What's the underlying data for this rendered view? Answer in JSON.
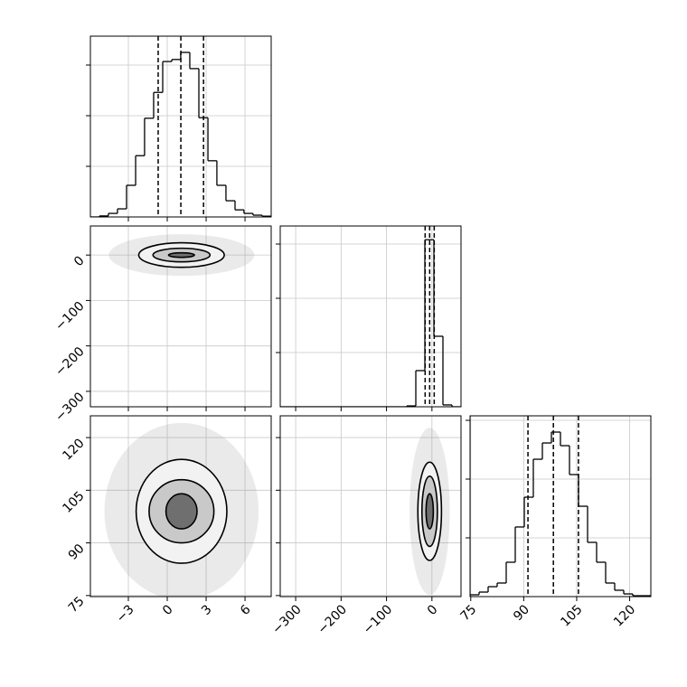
{
  "chart_data": [
    {
      "type": "histogram",
      "bins": [
        -5.93,
        -5.23,
        -4.54,
        -3.84,
        -3.14,
        -2.44,
        -1.75,
        -1.05,
        -0.35,
        0.35,
        1.04,
        1.74,
        2.44,
        3.14,
        3.83,
        4.53,
        5.23,
        5.92,
        6.62,
        7.32,
        8.02
      ],
      "counts": [
        0,
        20,
        70,
        160,
        625,
        1210,
        1950,
        2460,
        3070,
        3110,
        3250,
        2930,
        1960,
        1110,
        625,
        320,
        140,
        70,
        35,
        15
      ],
      "quantiles": [
        -0.7,
        1.05,
        2.8
      ],
      "xlim": [
        -5.93,
        8.02
      ],
      "ylim": [
        0,
        3571
      ],
      "xticks": [
        -3,
        0,
        3,
        6
      ],
      "yticks": [
        1000,
        2000,
        3000
      ],
      "show_xlabels": false,
      "show_ylabels": false,
      "grid": true,
      "color": "#000000"
    },
    {
      "type": "contour",
      "center": [
        1.1,
        0
      ],
      "levels": [
        {
          "rx": 3.3,
          "ry": 27
        },
        {
          "rx": 2.2,
          "ry": 15
        },
        {
          "rx": 1,
          "ry": 5
        }
      ],
      "xlim": [
        -5.93,
        8.02
      ],
      "ylim": [
        -334,
        64
      ],
      "xticks": [
        -3,
        0,
        3,
        6
      ],
      "yticks": [
        {
          "value": 0,
          "label": "0"
        },
        {
          "value": -100,
          "label": "−100"
        },
        {
          "value": -200,
          "label": "−200"
        },
        {
          "value": -300,
          "label": "−300"
        }
      ],
      "show_xlabels": false,
      "show_ylabels": true,
      "grid": true,
      "color": "#000000"
    },
    {
      "type": "histogram",
      "bins": [
        -334,
        -314.1,
        -294.2,
        -274.3,
        -254.4,
        -234.5,
        -214.6,
        -194.7,
        -174.8,
        -154.9,
        -135,
        -115.1,
        -95.2,
        -75.3,
        -55.4,
        -35.5,
        -15.6,
        4.3,
        24.2,
        44.1,
        64
      ],
      "counts": [
        0,
        0,
        0,
        0,
        0,
        0,
        0,
        0,
        0,
        0,
        0,
        0,
        0,
        0,
        80,
        3333,
        15400,
        6500,
        170,
        0
      ],
      "quantiles": [
        -15,
        -5,
        5
      ],
      "xlim": [
        -334,
        64
      ],
      "ylim": [
        0,
        16667
      ],
      "xticks": [
        -300,
        -200,
        -100,
        0
      ],
      "yticks": [
        5000,
        10000,
        15000
      ],
      "show_xlabels": false,
      "show_ylabels": false,
      "grid": true,
      "color": "#000000"
    },
    {
      "type": "contour",
      "center": [
        1.1,
        99
      ],
      "levels": [
        {
          "rx": 3.5,
          "ry": 14.8
        },
        {
          "rx": 2.5,
          "ry": 9
        },
        {
          "rx": 1.2,
          "ry": 5
        }
      ],
      "xlim": [
        -5.93,
        8.02
      ],
      "ylim": [
        74.7,
        126.2
      ],
      "xticks": [
        {
          "value": -3,
          "label": "−3"
        },
        0,
        3,
        6
      ],
      "yticks": [
        75,
        90,
        105,
        120
      ],
      "show_xlabels": true,
      "show_ylabels": true,
      "grid": true,
      "color": "#000000"
    },
    {
      "type": "contour",
      "center": [
        -5,
        99
      ],
      "levels": [
        {
          "rx": 26,
          "ry": 14
        },
        {
          "rx": 17,
          "ry": 10
        },
        {
          "rx": 8,
          "ry": 5
        }
      ],
      "xlim": [
        -334,
        64
      ],
      "ylim": [
        74.7,
        126.2
      ],
      "xticks": [
        {
          "value": -300,
          "label": "−300"
        },
        {
          "value": -200,
          "label": "−200"
        },
        {
          "value": -100,
          "label": "−100"
        },
        0
      ],
      "yticks": [
        75,
        90,
        105,
        120
      ],
      "show_xlabels": true,
      "show_ylabels": false,
      "grid": true,
      "color": "#000000"
    },
    {
      "type": "histogram",
      "bins": [
        74.8,
        77.36,
        79.92,
        82.48,
        85.04,
        87.6,
        90.16,
        92.72,
        95.28,
        97.84,
        100.4,
        102.96,
        105.52,
        108.08,
        110.64,
        113.2,
        115.76,
        118.32,
        120.88,
        123.44,
        126.0
      ],
      "counts": [
        31,
        77,
        169,
        231,
        585,
        1185,
        1692,
        2338,
        2615,
        2800,
        2569,
        2077,
        1538,
        923,
        585,
        231,
        108,
        46,
        15,
        15
      ],
      "quantiles": [
        91.2,
        98.4,
        105.5
      ],
      "xlim": [
        74.8,
        126.0
      ],
      "ylim": [
        0,
        3077
      ],
      "xticks": [
        75,
        90,
        105,
        120
      ],
      "yticks": [
        1000,
        2000,
        3000
      ],
      "show_xlabels": true,
      "show_ylabels": false,
      "grid": true,
      "color": "#000000"
    }
  ]
}
